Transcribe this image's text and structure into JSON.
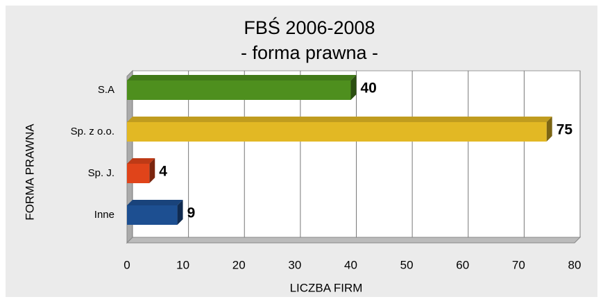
{
  "chart_data": {
    "type": "bar",
    "orientation": "horizontal",
    "title": "FBŚ 2006-2008",
    "subtitle": "- forma prawna -",
    "x_label": "LICZBA FIRM",
    "y_label": "FORMA PRAWNA",
    "categories": [
      "S.A",
      "Sp. z o.o.",
      "Sp. J.",
      "Inne"
    ],
    "values": [
      40,
      75,
      4,
      9
    ],
    "colors": [
      "#4e8f1e",
      "#e2b824",
      "#e0441a",
      "#1d4f91"
    ],
    "xlim": [
      0,
      80
    ],
    "xticks": [
      0,
      10,
      20,
      30,
      40,
      50,
      60,
      70,
      80
    ],
    "grid": true
  }
}
